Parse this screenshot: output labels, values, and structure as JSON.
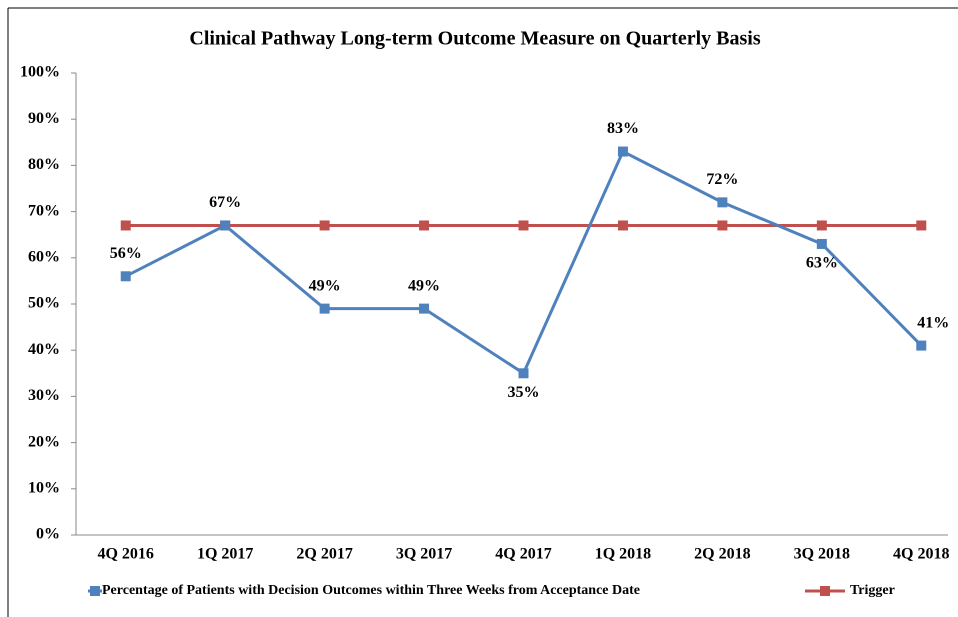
{
  "chart_data": {
    "type": "line",
    "title": "Clinical Pathway Long-term Outcome Measure on Quarterly Basis",
    "categories": [
      "4Q 2016",
      "1Q 2017",
      "2Q 2017",
      "3Q 2017",
      "4Q 2017",
      "1Q 2018",
      "2Q 2018",
      "3Q 2018",
      "4Q 2018"
    ],
    "series": [
      {
        "name": "Percentage of Patients with Decision Outcomes within Three Weeks from Acceptance Date",
        "color": "#4f81bd",
        "values": [
          56,
          67,
          49,
          49,
          35,
          83,
          72,
          63,
          41
        ],
        "value_labels": [
          "56%",
          "67%",
          "49%",
          "49%",
          "35%",
          "83%",
          "72%",
          "63%",
          "41%"
        ]
      },
      {
        "name": "Trigger",
        "color": "#c0504d",
        "values": [
          67,
          67,
          67,
          67,
          67,
          67,
          67,
          67,
          67
        ]
      }
    ],
    "ylim": [
      0,
      100
    ],
    "yticks": [
      {
        "value": 0,
        "label": "0%"
      },
      {
        "value": 10,
        "label": "10%"
      },
      {
        "value": 20,
        "label": "20%"
      },
      {
        "value": 30,
        "label": "30%"
      },
      {
        "value": 40,
        "label": "40%"
      },
      {
        "value": 50,
        "label": "50%"
      },
      {
        "value": 60,
        "label": "60%"
      },
      {
        "value": 70,
        "label": "70%"
      },
      {
        "value": 80,
        "label": "80%"
      },
      {
        "value": 90,
        "label": "90%"
      },
      {
        "value": 100,
        "label": "100%"
      }
    ],
    "grid": false,
    "legend": "bottom"
  }
}
